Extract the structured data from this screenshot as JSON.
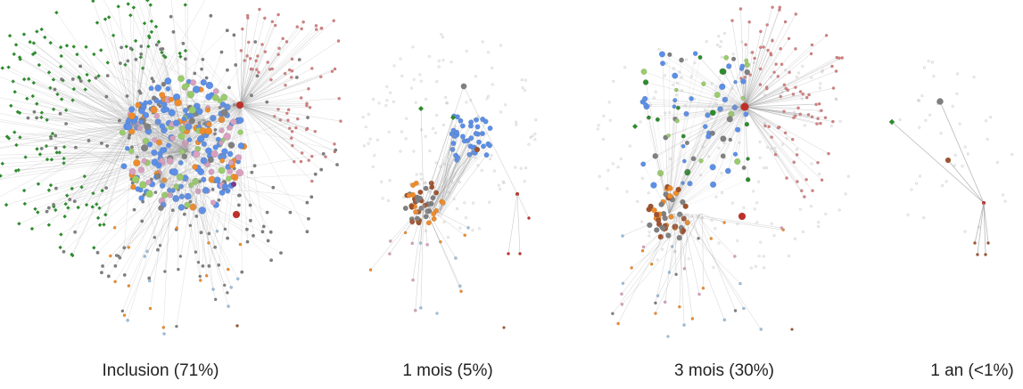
{
  "panels": [
    {
      "id": "inclusion",
      "caption": "Inclusion (71%)",
      "density": 0.71
    },
    {
      "id": "one-month",
      "caption": "1 mois (5%)",
      "density": 0.05
    },
    {
      "id": "three-months",
      "caption": "3 mois (30%)",
      "density": 0.3
    },
    {
      "id": "one-year",
      "caption": "1 an (<1%)",
      "density": 0.01
    }
  ],
  "colors": {
    "edge": "#9a9a9a",
    "green": "#2e8b2e",
    "red": "#d98080",
    "blue": "#5b8fe8",
    "orange": "#f08c2a",
    "gray": "#7f7f7f",
    "brown": "#a0522d",
    "darkred": "#c0302a",
    "lightgreen": "#9acd6a",
    "lightblue": "#9ac0e0",
    "purple": "#7a3c8a",
    "pink": "#d9a0c0"
  }
}
